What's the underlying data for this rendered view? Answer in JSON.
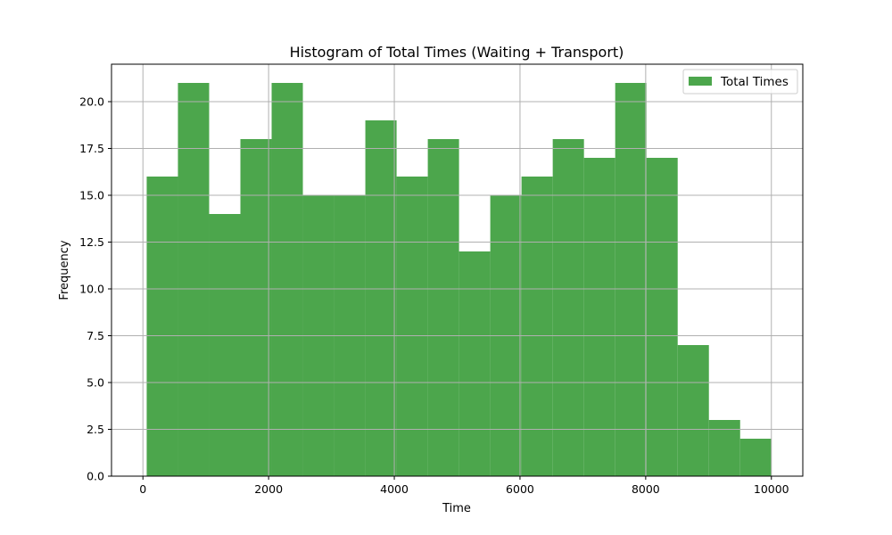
{
  "chart_data": {
    "type": "bar",
    "title": "Histogram of Total Times (Waiting + Transport)",
    "xlabel": "Time",
    "ylabel": "Frequency",
    "xlim": [
      -500,
      10500
    ],
    "ylim": [
      0,
      22
    ],
    "xticks": [
      0,
      2000,
      4000,
      6000,
      8000,
      10000
    ],
    "xtick_labels": [
      "0",
      "2000",
      "4000",
      "6000",
      "8000",
      "10000"
    ],
    "yticks": [
      0,
      2.5,
      5,
      7.5,
      10,
      12.5,
      15,
      17.5,
      20
    ],
    "ytick_labels": [
      "0.0",
      "2.5",
      "5.0",
      "7.5",
      "10.0",
      "12.5",
      "15.0",
      "17.5",
      "20.0"
    ],
    "bin_edges": [
      60,
      557,
      1054,
      1551,
      2048,
      2545,
      3042,
      3539,
      4036,
      4533,
      5030,
      5527,
      6024,
      6521,
      7018,
      7515,
      8012,
      8509,
      9006,
      9503,
      10000
    ],
    "values": [
      16,
      21,
      14,
      18,
      21,
      15,
      15,
      19,
      16,
      18,
      12,
      15,
      16,
      18,
      17,
      21,
      17,
      7,
      3,
      2
    ],
    "series": [
      {
        "name": "Total Times",
        "color": "#4ca64c",
        "alpha": 0.7
      }
    ],
    "grid": true,
    "legend": {
      "position": "top-right",
      "entries": [
        "Total Times"
      ]
    }
  }
}
